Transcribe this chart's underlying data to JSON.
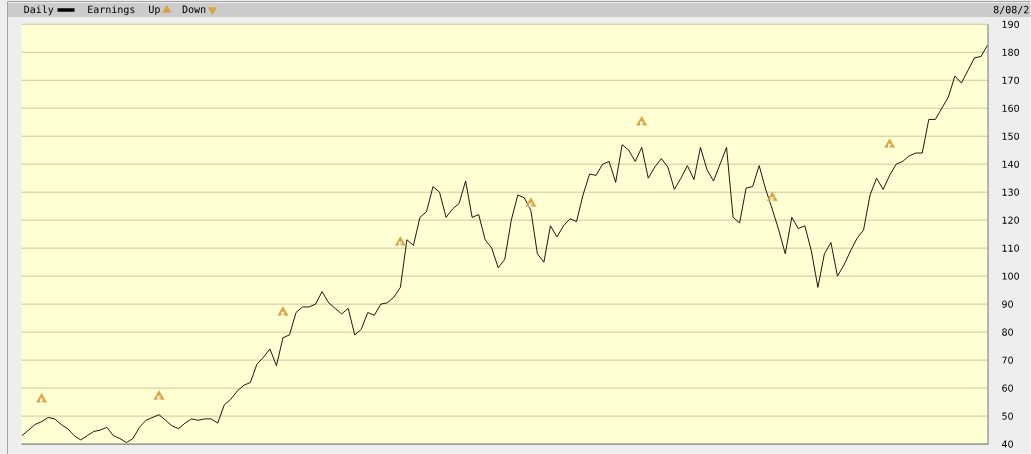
{
  "chart_data": {
    "type": "line",
    "categories": [
      null,
      null,
      null,
      null,
      null,
      null,
      null,
      null,
      null,
      null,
      null,
      null,
      null,
      null,
      null,
      null,
      null,
      null,
      null,
      null,
      null,
      null,
      null,
      null,
      null,
      null,
      null,
      null,
      null,
      null,
      null,
      null,
      null,
      null,
      null,
      null,
      null,
      null,
      null,
      null,
      null,
      null,
      null,
      null,
      null,
      null,
      null,
      null,
      null,
      null,
      null,
      null,
      null,
      null,
      null,
      null,
      null,
      null,
      null,
      null,
      null,
      null,
      null,
      null,
      null,
      null,
      null,
      null,
      null,
      null,
      null,
      null,
      null,
      null,
      null,
      null,
      null,
      null,
      null,
      null,
      null,
      null,
      null,
      null,
      null,
      null,
      null,
      null,
      null,
      null,
      null,
      null,
      null,
      null,
      null,
      null,
      null,
      null,
      null,
      null,
      null,
      null,
      null,
      null,
      null,
      null,
      null,
      null,
      null,
      null,
      null,
      null,
      null,
      null,
      null,
      null,
      null,
      null,
      null,
      null,
      null,
      null,
      null,
      null,
      null,
      null,
      null,
      null,
      null,
      null,
      null,
      null,
      null,
      null,
      null,
      null,
      null,
      null,
      null,
      null,
      null,
      null,
      null,
      null,
      null,
      null,
      null,
      null,
      null
    ],
    "series": [
      {
        "name": "Daily",
        "color": "#000000",
        "marker": "none",
        "line_style": "solid",
        "values": [
          43,
          45,
          47,
          48,
          49.5,
          49,
          47,
          45.5,
          43,
          41.5,
          43,
          44.5,
          45,
          46,
          43,
          42,
          40.5,
          42,
          46,
          48.5,
          49.5,
          50.5,
          48.5,
          46.5,
          45.5,
          47.5,
          49,
          48.5,
          49,
          49,
          47.5,
          54,
          56,
          59,
          61,
          62,
          68.5,
          71,
          74,
          68,
          78,
          79,
          87,
          89,
          89,
          90,
          94.5,
          90.5,
          88.5,
          86.5,
          88.5,
          79,
          81,
          87,
          86,
          90,
          90.5,
          92.5,
          96,
          113,
          111,
          121,
          123,
          132,
          130,
          121,
          124,
          126,
          134,
          121,
          122,
          113,
          110,
          103,
          106,
          120,
          129,
          128,
          123.5,
          108,
          105,
          118,
          114,
          118,
          120.5,
          119.5,
          129,
          136.5,
          136,
          140,
          141,
          133.5,
          147,
          145,
          141,
          146,
          135,
          139,
          142,
          139,
          131,
          135,
          139.5,
          134.5,
          146,
          138,
          134,
          140,
          146,
          121,
          119,
          131.5,
          132,
          139.5,
          131,
          124,
          116.5,
          108,
          121,
          117,
          118,
          109,
          96,
          108,
          112,
          100,
          104,
          109,
          113.5,
          116.5,
          129,
          135,
          131,
          136,
          140,
          141,
          143,
          144,
          144,
          156,
          156,
          160,
          164,
          171.5,
          169,
          173.5,
          178,
          178.5,
          182.5
        ]
      },
      {
        "name": "Up",
        "type": "scatter",
        "color": "#d9a441",
        "marker": "triangle",
        "values": [
          null,
          null,
          null,
          56,
          null,
          null,
          null,
          null,
          null,
          null,
          null,
          null,
          null,
          null,
          null,
          null,
          null,
          null,
          null,
          null,
          null,
          57,
          null,
          null,
          null,
          null,
          null,
          null,
          null,
          null,
          null,
          null,
          null,
          null,
          null,
          null,
          null,
          null,
          null,
          null,
          87,
          null,
          null,
          null,
          null,
          null,
          null,
          null,
          null,
          null,
          null,
          null,
          null,
          null,
          null,
          null,
          null,
          null,
          112,
          null,
          null,
          null,
          null,
          null,
          null,
          null,
          null,
          null,
          null,
          null,
          null,
          null,
          null,
          null,
          null,
          null,
          null,
          null,
          126,
          null,
          null,
          null,
          null,
          null,
          null,
          null,
          null,
          null,
          null,
          null,
          null,
          null,
          null,
          null,
          null,
          155,
          null,
          null,
          null,
          null,
          null,
          null,
          null,
          null,
          null,
          null,
          null,
          null,
          null,
          null,
          null,
          null,
          null,
          null,
          null,
          128,
          null,
          null,
          null,
          null,
          null,
          null,
          null,
          null,
          null,
          null,
          null,
          null,
          null,
          null,
          null,
          null,
          null,
          147,
          null,
          null,
          null,
          null,
          null,
          null,
          null,
          null,
          null,
          null,
          null,
          null,
          null,
          null,
          null
        ],
        "value_labels": [
          null,
          null,
          null,
          "E",
          null,
          null,
          null,
          null,
          null,
          null,
          null,
          null,
          null,
          null,
          null,
          null,
          null,
          null,
          null,
          null,
          null,
          "E",
          null,
          null,
          null,
          null,
          null,
          null,
          null,
          null,
          null,
          null,
          null,
          null,
          null,
          null,
          null,
          null,
          null,
          null,
          "E",
          null,
          null,
          null,
          null,
          null,
          null,
          null,
          null,
          null,
          null,
          null,
          null,
          null,
          null,
          null,
          null,
          null,
          "E",
          null,
          null,
          null,
          null,
          null,
          null,
          null,
          null,
          null,
          null,
          null,
          null,
          null,
          null,
          null,
          null,
          null,
          null,
          null,
          "E",
          null,
          null,
          null,
          null,
          null,
          null,
          null,
          null,
          null,
          null,
          null,
          null,
          null,
          null,
          null,
          null,
          "E",
          null,
          null,
          null,
          null,
          null,
          null,
          null,
          null,
          null,
          null,
          null,
          null,
          null,
          null,
          null,
          null,
          null,
          null,
          null,
          "E",
          null,
          null,
          null,
          null,
          null,
          null,
          null,
          null,
          null,
          null,
          null,
          null,
          null,
          null,
          null,
          null,
          null,
          "E",
          null,
          null,
          null,
          null,
          null,
          null,
          null,
          null,
          null,
          null,
          null,
          null,
          null,
          null,
          null
        ]
      },
      {
        "name": "Down",
        "type": "scatter",
        "color": "#d9a441",
        "marker": "triangle-down",
        "values": [
          null,
          null,
          null,
          null,
          null,
          null,
          null,
          null,
          null,
          null,
          null,
          null,
          null,
          null,
          null,
          null,
          null,
          null,
          null,
          null,
          null,
          null,
          null,
          null,
          null,
          null,
          null,
          null,
          null,
          null,
          null,
          null,
          null,
          null,
          null,
          null,
          null,
          null,
          null,
          null,
          null,
          null,
          null,
          null,
          null,
          null,
          null,
          null,
          null,
          null,
          null,
          null,
          null,
          null,
          null,
          null,
          null,
          null,
          null,
          null,
          null,
          null,
          null,
          null,
          null,
          null,
          null,
          null,
          null,
          null,
          null,
          null,
          null,
          null,
          null,
          null,
          null,
          null,
          null,
          null,
          null,
          null,
          null,
          null,
          null,
          null,
          null,
          null,
          null,
          null,
          null,
          null,
          null,
          null,
          null,
          null,
          null,
          null,
          null,
          null,
          null,
          null,
          null,
          null,
          null,
          null,
          null,
          null,
          null,
          null,
          null,
          null,
          null,
          null,
          null,
          null,
          null,
          null,
          null,
          null,
          null,
          null,
          null,
          null,
          null,
          null,
          null,
          null,
          null,
          null,
          null,
          null,
          null,
          null,
          null,
          null,
          null,
          null,
          null,
          null,
          null,
          null,
          null,
          null,
          null,
          null,
          null,
          null,
          null
        ]
      }
    ],
    "legend_title": "Earnings",
    "legend": "top left",
    "ylim": [
      40,
      190
    ],
    "yticks": [
      40,
      50,
      60,
      70,
      80,
      90,
      100,
      110,
      120,
      130,
      140,
      150,
      160,
      170,
      180,
      190
    ],
    "tick_labels": "y",
    "grid": "y",
    "annotations": [
      "8/08/2"
    ]
  }
}
